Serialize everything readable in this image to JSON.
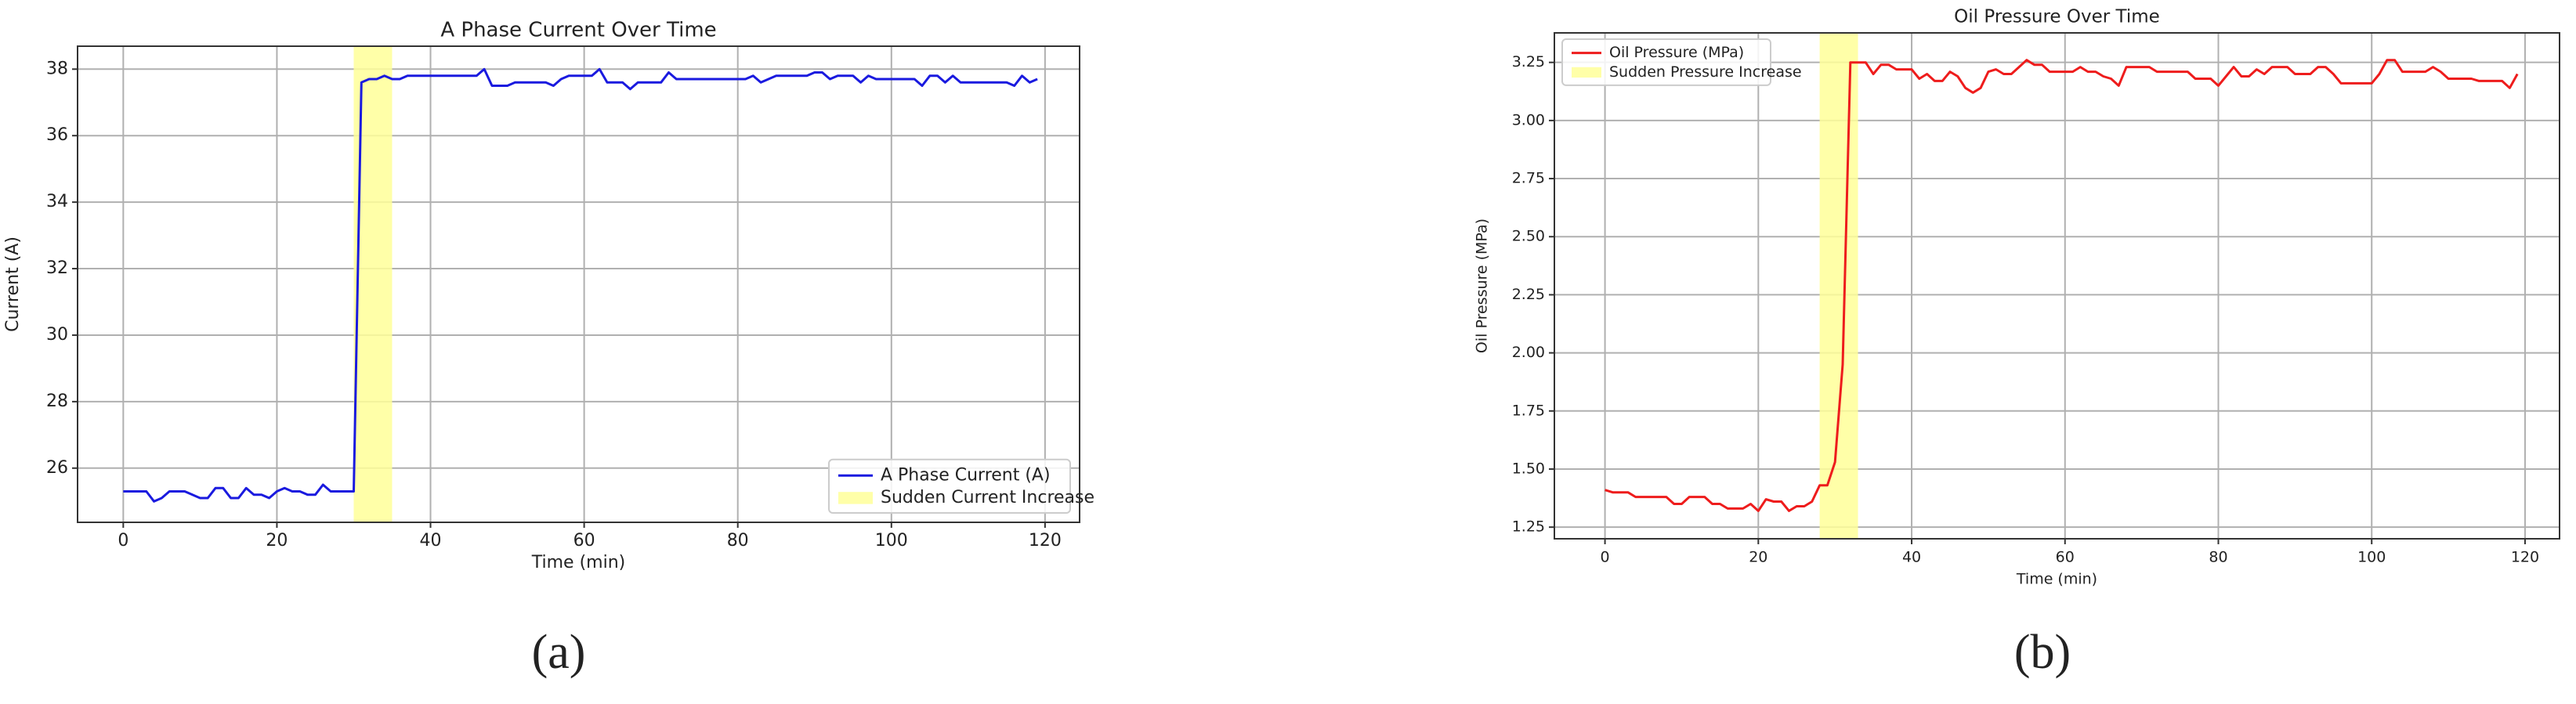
{
  "chart_data": [
    {
      "type": "line",
      "title": "A Phase Current Over Time",
      "xlabel": "Time (min)",
      "ylabel": "Current (A)",
      "caption": "(a)",
      "x": [
        0,
        1,
        2,
        3,
        4,
        5,
        6,
        7,
        8,
        9,
        10,
        11,
        12,
        13,
        14,
        15,
        16,
        17,
        18,
        19,
        20,
        21,
        22,
        23,
        24,
        25,
        26,
        27,
        28,
        29,
        30,
        31,
        32,
        33,
        34,
        35,
        36,
        37,
        38,
        39,
        40,
        41,
        42,
        43,
        44,
        45,
        46,
        47,
        48,
        49,
        50,
        51,
        52,
        53,
        54,
        55,
        56,
        57,
        58,
        59,
        60,
        61,
        62,
        63,
        64,
        65,
        66,
        67,
        68,
        69,
        70,
        71,
        72,
        73,
        74,
        75,
        76,
        77,
        78,
        79,
        80,
        81,
        82,
        83,
        84,
        85,
        86,
        87,
        88,
        89,
        90,
        91,
        92,
        93,
        94,
        95,
        96,
        97,
        98,
        99,
        100,
        101,
        102,
        103,
        104,
        105,
        106,
        107,
        108,
        109,
        110,
        111,
        112,
        113,
        114,
        115,
        116,
        117,
        118,
        119
      ],
      "series": [
        {
          "name": "A Phase Current (A)",
          "color": "#1a1adf",
          "values": [
            25.3,
            25.3,
            25.3,
            25.3,
            25.0,
            25.1,
            25.3,
            25.3,
            25.3,
            25.2,
            25.1,
            25.1,
            25.4,
            25.4,
            25.1,
            25.1,
            25.4,
            25.2,
            25.2,
            25.1,
            25.3,
            25.4,
            25.3,
            25.3,
            25.2,
            25.2,
            25.5,
            25.3,
            25.3,
            25.3,
            25.3,
            37.6,
            37.7,
            37.7,
            37.8,
            37.7,
            37.7,
            37.8,
            37.8,
            37.8,
            37.8,
            37.8,
            37.8,
            37.8,
            37.8,
            37.8,
            37.8,
            38.0,
            37.5,
            37.5,
            37.5,
            37.6,
            37.6,
            37.6,
            37.6,
            37.6,
            37.5,
            37.7,
            37.8,
            37.8,
            37.8,
            37.8,
            38.0,
            37.6,
            37.6,
            37.6,
            37.4,
            37.6,
            37.6,
            37.6,
            37.6,
            37.9,
            37.7,
            37.7,
            37.7,
            37.7,
            37.7,
            37.7,
            37.7,
            37.7,
            37.7,
            37.7,
            37.8,
            37.6,
            37.7,
            37.8,
            37.8,
            37.8,
            37.8,
            37.8,
            37.9,
            37.9,
            37.7,
            37.8,
            37.8,
            37.8,
            37.6,
            37.8,
            37.7,
            37.7,
            37.7,
            37.7,
            37.7,
            37.7,
            37.5,
            37.8,
            37.8,
            37.6,
            37.8,
            37.6,
            37.6,
            37.6,
            37.6,
            37.6,
            37.6,
            37.6,
            37.5,
            37.8,
            37.6,
            37.7
          ]
        }
      ],
      "span": {
        "x": [
          30,
          35
        ],
        "label": "Sudden Current Increase",
        "color": "#ffff99"
      },
      "xlim": [
        -5.95,
        124.5
      ],
      "ylim": [
        24.37,
        38.69
      ],
      "xticks": [
        0,
        20,
        40,
        60,
        80,
        100,
        120
      ],
      "yticks": [
        26,
        28,
        30,
        32,
        34,
        36,
        38
      ],
      "grid": true,
      "legend": "lower right"
    },
    {
      "type": "line",
      "title": "Oil Pressure Over Time",
      "xlabel": "Time (min)",
      "ylabel": "Oil Pressure (MPa)",
      "caption": "(b)",
      "x": [
        0,
        1,
        2,
        3,
        4,
        5,
        6,
        7,
        8,
        9,
        10,
        11,
        12,
        13,
        14,
        15,
        16,
        17,
        18,
        19,
        20,
        21,
        22,
        23,
        24,
        25,
        26,
        27,
        28,
        29,
        30,
        31,
        32,
        33,
        34,
        35,
        36,
        37,
        38,
        39,
        40,
        41,
        42,
        43,
        44,
        45,
        46,
        47,
        48,
        49,
        50,
        51,
        52,
        53,
        54,
        55,
        56,
        57,
        58,
        59,
        60,
        61,
        62,
        63,
        64,
        65,
        66,
        67,
        68,
        69,
        70,
        71,
        72,
        73,
        74,
        75,
        76,
        77,
        78,
        79,
        80,
        81,
        82,
        83,
        84,
        85,
        86,
        87,
        88,
        89,
        90,
        91,
        92,
        93,
        94,
        95,
        96,
        97,
        98,
        99,
        100,
        101,
        102,
        103,
        104,
        105,
        106,
        107,
        108,
        109,
        110,
        111,
        112,
        113,
        114,
        115,
        116,
        117,
        118,
        119
      ],
      "series": [
        {
          "name": "Oil Pressure (MPa)",
          "color": "#ee1c1c",
          "values": [
            1.41,
            1.4,
            1.4,
            1.4,
            1.38,
            1.38,
            1.38,
            1.38,
            1.38,
            1.35,
            1.35,
            1.38,
            1.38,
            1.38,
            1.35,
            1.35,
            1.33,
            1.33,
            1.33,
            1.35,
            1.32,
            1.37,
            1.36,
            1.36,
            1.32,
            1.34,
            1.34,
            1.36,
            1.43,
            1.43,
            1.53,
            1.95,
            3.25,
            3.25,
            3.25,
            3.2,
            3.24,
            3.24,
            3.22,
            3.22,
            3.22,
            3.18,
            3.2,
            3.17,
            3.17,
            3.21,
            3.19,
            3.14,
            3.12,
            3.14,
            3.21,
            3.22,
            3.2,
            3.2,
            3.23,
            3.26,
            3.24,
            3.24,
            3.21,
            3.21,
            3.21,
            3.21,
            3.23,
            3.21,
            3.21,
            3.19,
            3.18,
            3.15,
            3.23,
            3.23,
            3.23,
            3.23,
            3.21,
            3.21,
            3.21,
            3.21,
            3.21,
            3.18,
            3.18,
            3.18,
            3.15,
            3.19,
            3.23,
            3.19,
            3.19,
            3.22,
            3.2,
            3.23,
            3.23,
            3.23,
            3.2,
            3.2,
            3.2,
            3.23,
            3.23,
            3.2,
            3.16,
            3.16,
            3.16,
            3.16,
            3.16,
            3.2,
            3.26,
            3.26,
            3.21,
            3.21,
            3.21,
            3.21,
            3.23,
            3.21,
            3.18,
            3.18,
            3.18,
            3.18,
            3.17,
            3.17,
            3.17,
            3.17,
            3.14,
            3.2
          ]
        }
      ],
      "span": {
        "x": [
          28,
          33
        ],
        "label": "Sudden Pressure Increase",
        "color": "#ffff99"
      },
      "xlim": [
        -6.6,
        124.5
      ],
      "ylim": [
        1.2,
        3.377
      ],
      "xticks": [
        0,
        20,
        40,
        60,
        80,
        100,
        120
      ],
      "yticks": [
        1.25,
        {
          "value": 1.5,
          "label": "1.50"
        },
        1.75,
        {
          "value": 2.0,
          "label": "2.00"
        },
        2.25,
        {
          "value": 2.5,
          "label": "2.50"
        },
        2.75,
        {
          "value": 3.0,
          "label": "3.00"
        },
        3.25
      ],
      "grid": true,
      "legend": "upper left"
    }
  ]
}
